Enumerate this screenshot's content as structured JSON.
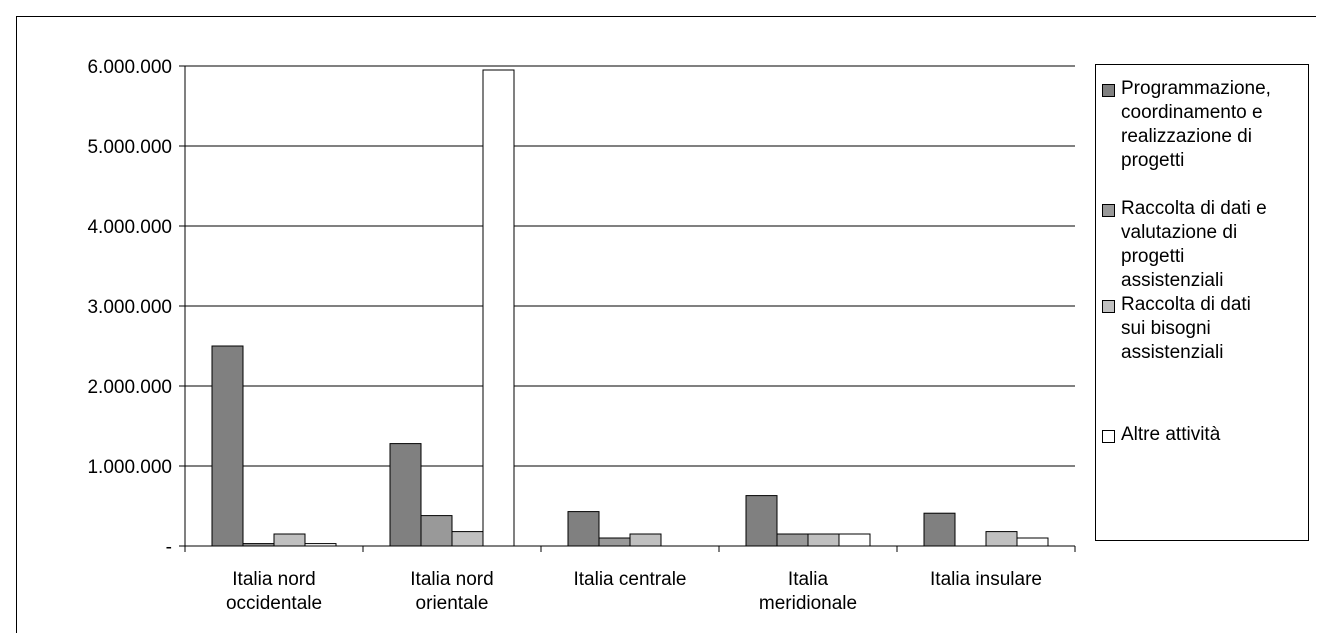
{
  "chart_data": {
    "type": "bar",
    "title": "",
    "xlabel": "",
    "ylabel": "",
    "ylim": [
      0,
      6000000
    ],
    "yticks": [
      0,
      1000000,
      2000000,
      3000000,
      4000000,
      5000000,
      6000000
    ],
    "ytick_labels": [
      "-",
      "1.000.000",
      "2.000.000",
      "3.000.000",
      "4.000.000",
      "5.000.000",
      "6.000.000"
    ],
    "grid": true,
    "legend_position": "right",
    "categories": [
      [
        "Italia nord",
        "occidentale"
      ],
      [
        "Italia nord",
        "orientale"
      ],
      [
        "Italia centrale"
      ],
      [
        "Italia",
        "meridionale"
      ],
      [
        "Italia insulare"
      ]
    ],
    "series": [
      {
        "name": [
          "Programmazione,",
          "coordinamento e",
          "realizzazione di",
          "progetti"
        ],
        "color": "#808080",
        "values": [
          2500000,
          1280000,
          430000,
          630000,
          410000
        ]
      },
      {
        "name": [
          "Raccolta di dati e",
          "valutazione di",
          "progetti",
          "assistenziali"
        ],
        "color": "#999999",
        "values": [
          30000,
          380000,
          100000,
          150000,
          0
        ]
      },
      {
        "name": [
          "Raccolta di dati",
          "sui bisogni",
          "assistenziali"
        ],
        "color": "#c0c0c0",
        "values": [
          150000,
          180000,
          150000,
          150000,
          180000
        ]
      },
      {
        "name": [
          "Altre attività"
        ],
        "color": "#ffffff",
        "values": [
          30000,
          5950000,
          0,
          150000,
          100000
        ]
      }
    ]
  }
}
